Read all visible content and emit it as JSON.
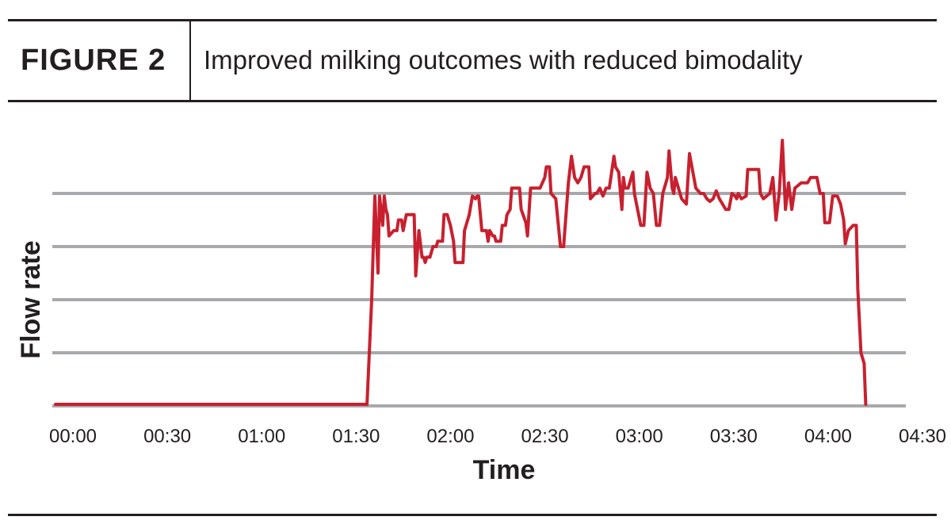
{
  "header": {
    "figure_label": "FIGURE 2",
    "title": "Improved milking outcomes with reduced bimodality"
  },
  "colors": {
    "line": "#c8202f",
    "grid": "#a7a9ac",
    "rules": "#231f20"
  },
  "chart_data": {
    "type": "line",
    "title": "Improved milking outcomes with reduced bimodality",
    "xlabel": "Time",
    "ylabel": "Flow rate",
    "x_tick_labels": [
      "00:00",
      "00:30",
      "01:00",
      "01:30",
      "02:00",
      "02:30",
      "03:00",
      "03:30",
      "04:00",
      "04:30"
    ],
    "xlim": [
      0,
      270
    ],
    "ylim": [
      0,
      4
    ],
    "y_gridlines": [
      0,
      1,
      2,
      3,
      4
    ],
    "y_tick_labels_shown": false,
    "grid": true,
    "series": [
      {
        "x_unit": "minutes",
        "points": [
          [
            0,
            0.03
          ],
          [
            99,
            0.03
          ],
          [
            100.5,
            2.0
          ],
          [
            101.5,
            3.95
          ],
          [
            102.5,
            2.5
          ],
          [
            103,
            3.95
          ],
          [
            104,
            3.4
          ],
          [
            104.5,
            3.95
          ],
          [
            105,
            3.7
          ],
          [
            105.5,
            3.6
          ],
          [
            106,
            3.2
          ],
          [
            107.5,
            3.3
          ],
          [
            108.5,
            3.3
          ],
          [
            109,
            3.5
          ],
          [
            110,
            3.5
          ],
          [
            110.5,
            3.3
          ],
          [
            111.5,
            3.6
          ],
          [
            114,
            3.6
          ],
          [
            114.5,
            2.45
          ],
          [
            115.5,
            3.3
          ],
          [
            116.5,
            2.8
          ],
          [
            117,
            2.8
          ],
          [
            117.5,
            2.7
          ],
          [
            118,
            2.8
          ],
          [
            119,
            2.8
          ],
          [
            120,
            3.0
          ],
          [
            121,
            3.0
          ],
          [
            121.5,
            3.1
          ],
          [
            123,
            3.1
          ],
          [
            123.5,
            3.6
          ],
          [
            124.5,
            3.6
          ],
          [
            125.5,
            3.4
          ],
          [
            126.5,
            3.1
          ],
          [
            127,
            2.7
          ],
          [
            129.5,
            2.7
          ],
          [
            130,
            3.3
          ],
          [
            131.5,
            3.6
          ],
          [
            132.5,
            3.95
          ],
          [
            133.5,
            3.9
          ],
          [
            134,
            3.95
          ],
          [
            134.5,
            3.95
          ],
          [
            135.5,
            3.3
          ],
          [
            137,
            3.3
          ],
          [
            137.5,
            3.1
          ],
          [
            138,
            3.3
          ],
          [
            139,
            3.2
          ],
          [
            139.5,
            3.2
          ],
          [
            140,
            3.1
          ],
          [
            141.5,
            3.1
          ],
          [
            142,
            3.4
          ],
          [
            143,
            3.4
          ],
          [
            143.5,
            3.6
          ],
          [
            144.5,
            3.7
          ],
          [
            145,
            4.1
          ],
          [
            147.5,
            4.1
          ],
          [
            148,
            3.7
          ],
          [
            149.5,
            3.45
          ],
          [
            150,
            3.2
          ],
          [
            151,
            4.1
          ],
          [
            154,
            4.1
          ],
          [
            155.5,
            4.3
          ],
          [
            156,
            4.5
          ],
          [
            157,
            4.5
          ],
          [
            157.5,
            4.0
          ],
          [
            159,
            3.9
          ],
          [
            160.5,
            3.0
          ],
          [
            161.5,
            3.0
          ],
          [
            163,
            4.2
          ],
          [
            164,
            4.7
          ],
          [
            165,
            4.3
          ],
          [
            166,
            4.2
          ],
          [
            167,
            4.3
          ],
          [
            168,
            4.5
          ],
          [
            169.5,
            4.5
          ],
          [
            170,
            3.9
          ],
          [
            171.5,
            4.0
          ],
          [
            172,
            4.0
          ],
          [
            173,
            4.1
          ],
          [
            174,
            3.95
          ],
          [
            175,
            4.1
          ],
          [
            176,
            4.1
          ],
          [
            176.5,
            4.3
          ],
          [
            177.5,
            4.7
          ],
          [
            178,
            4.5
          ],
          [
            179,
            4.4
          ],
          [
            180,
            3.7
          ],
          [
            180.5,
            4.3
          ],
          [
            181,
            4.1
          ],
          [
            182,
            4.1
          ],
          [
            183.5,
            4.4
          ],
          [
            184,
            4.0
          ],
          [
            185,
            3.7
          ],
          [
            186,
            3.4
          ],
          [
            187,
            3.4
          ],
          [
            188,
            4.4
          ],
          [
            189,
            4.1
          ],
          [
            190,
            4.0
          ],
          [
            191,
            3.4
          ],
          [
            192,
            3.4
          ],
          [
            193,
            4.0
          ],
          [
            193.5,
            4.1
          ],
          [
            194.5,
            4.3
          ],
          [
            195,
            4.8
          ],
          [
            196,
            4.1
          ],
          [
            196.5,
            4.0
          ],
          [
            197,
            4.3
          ],
          [
            198,
            4.1
          ],
          [
            199,
            3.9
          ],
          [
            200.5,
            3.8
          ],
          [
            201.5,
            4.75
          ],
          [
            203.5,
            4.1
          ],
          [
            205,
            4.0
          ],
          [
            206,
            4.0
          ],
          [
            207,
            3.9
          ],
          [
            208,
            3.85
          ],
          [
            209,
            3.9
          ],
          [
            210,
            4.05
          ],
          [
            211,
            3.9
          ],
          [
            212,
            3.8
          ],
          [
            213,
            3.7
          ],
          [
            214,
            3.7
          ],
          [
            215,
            4.0
          ],
          [
            216,
            3.95
          ],
          [
            216.5,
            3.9
          ],
          [
            217,
            4.0
          ],
          [
            218,
            3.9
          ],
          [
            219.5,
            3.95
          ],
          [
            220,
            4.45
          ],
          [
            223.5,
            4.45
          ],
          [
            224,
            4.0
          ],
          [
            225,
            3.9
          ],
          [
            226,
            3.95
          ],
          [
            227,
            4.0
          ],
          [
            228,
            4.3
          ],
          [
            229,
            3.5
          ],
          [
            230,
            4.0
          ],
          [
            231,
            5.0
          ],
          [
            232,
            3.7
          ],
          [
            233,
            4.2
          ],
          [
            234,
            3.7
          ],
          [
            235,
            4.1
          ],
          [
            237,
            4.2
          ],
          [
            239,
            4.2
          ],
          [
            240,
            4.3
          ],
          [
            242,
            4.3
          ],
          [
            243,
            4.0
          ],
          [
            244,
            4.0
          ],
          [
            244.5,
            3.45
          ],
          [
            246,
            3.45
          ],
          [
            247,
            3.95
          ],
          [
            248.5,
            3.95
          ],
          [
            249.5,
            3.8
          ],
          [
            250.5,
            3.5
          ],
          [
            251,
            3.05
          ],
          [
            252,
            3.3
          ],
          [
            253.5,
            3.4
          ],
          [
            254.5,
            3.4
          ],
          [
            255,
            2.2
          ],
          [
            256,
            1.0
          ],
          [
            257,
            0.8
          ],
          [
            257.5,
            0.03
          ]
        ]
      }
    ]
  }
}
